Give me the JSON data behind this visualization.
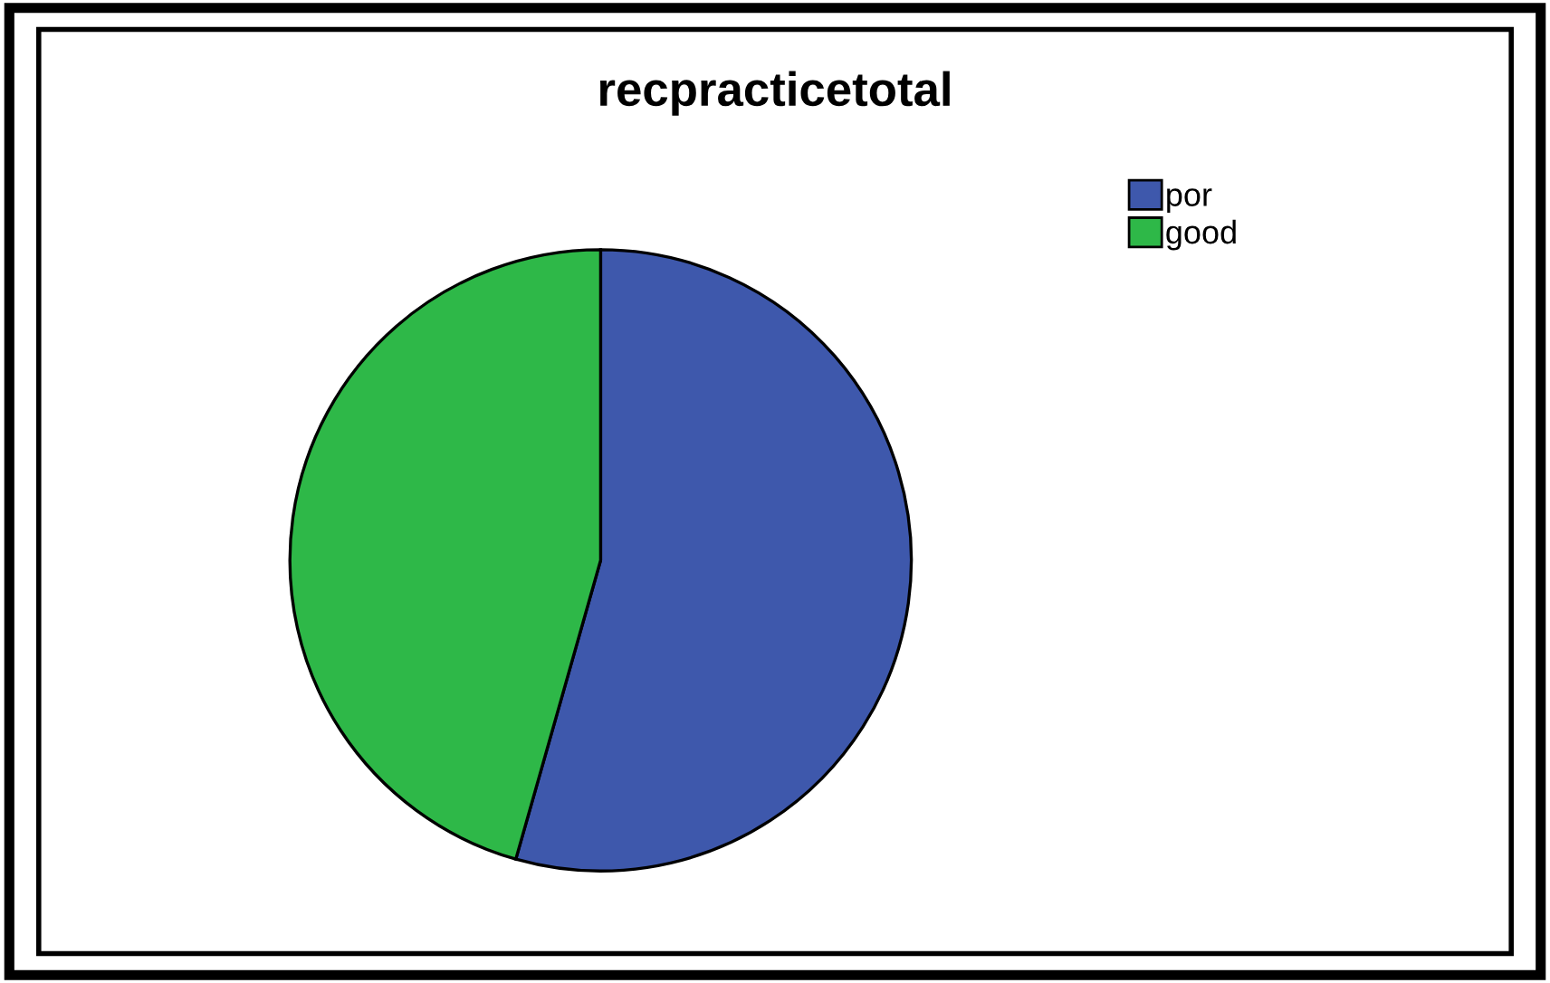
{
  "chart_data": {
    "type": "pie",
    "title": "recpracticetotal",
    "categories": [
      "por",
      "good"
    ],
    "values": [
      54.4,
      45.6
    ],
    "colors": [
      "#3e58ac",
      "#2eb848"
    ],
    "legend": "top right"
  }
}
